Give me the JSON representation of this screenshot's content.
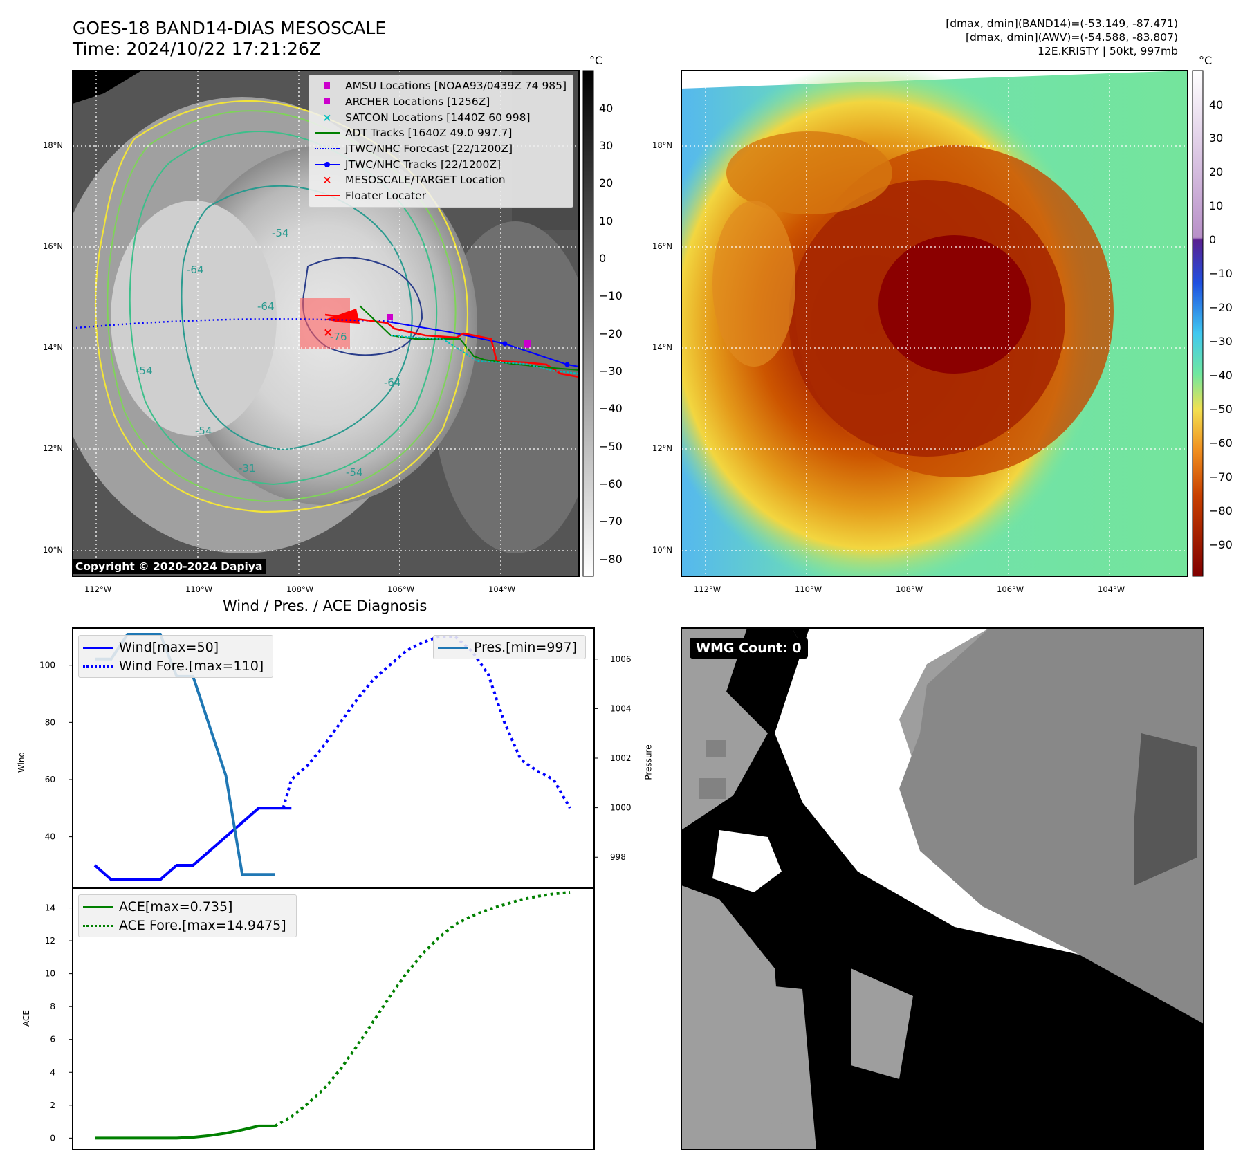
{
  "header": {
    "title_line1": "GOES-18 BAND14-DIAS MESOSCALE",
    "title_line2": "Time: 2024/10/22 17:21:26Z",
    "info_line1": "[dmax, dmin](BAND14)=(-53.149, -87.471)",
    "info_line2": "[dmax, dmin](AWV)=(-54.588, -83.807)",
    "info_line3": "12E.KRISTY | 50kt, 997mb"
  },
  "ir_map": {
    "lat_labels": [
      "18°N",
      "16°N",
      "14°N",
      "12°N",
      "10°N"
    ],
    "lon_labels": [
      "112°W",
      "110°W",
      "108°W",
      "106°W",
      "104°W"
    ],
    "contour_labels": [
      "-54",
      "-64",
      "-76",
      "-54",
      "-64",
      "-54",
      "-31",
      "-54",
      "-64"
    ],
    "colorbar_unit": "°C",
    "colorbar_ticks": [
      "40",
      "30",
      "20",
      "10",
      "0",
      "−10",
      "−20",
      "−30",
      "−40",
      "−50",
      "−60",
      "−70",
      "−80"
    ],
    "copyright": "Copyright © 2020-2024 Dapiya",
    "legend": [
      {
        "label": "AMSU Locations [NOAA93/0439Z 74 985]",
        "symbol": "square",
        "color": "#cc00cc"
      },
      {
        "label": "ARCHER Locations [1256Z]",
        "symbol": "square",
        "color": "#cc00cc"
      },
      {
        "label": "SATCON Locations [1440Z 60 998]",
        "symbol": "x",
        "color": "#00bfbf"
      },
      {
        "label": "ADT Tracks [1640Z 49.0 997.7]",
        "symbol": "line",
        "color": "#008000"
      },
      {
        "label": "JTWC/NHC Forecast [22/1200Z]",
        "symbol": "dotted",
        "color": "#0000ff"
      },
      {
        "label": "JTWC/NHC Tracks [22/1200Z]",
        "symbol": "line-dot",
        "color": "#0000ff"
      },
      {
        "label": "MESOSCALE/TARGET Location",
        "symbol": "x",
        "color": "#ff0000"
      },
      {
        "label": "Floater Locater",
        "symbol": "line",
        "color": "#ff0000"
      }
    ]
  },
  "awv_map": {
    "lat_labels": [
      "18°N",
      "16°N",
      "14°N",
      "12°N",
      "10°N"
    ],
    "lon_labels": [
      "112°W",
      "110°W",
      "108°W",
      "106°W",
      "104°W"
    ],
    "colorbar_unit": "°C",
    "colorbar_ticks": [
      "40",
      "30",
      "20",
      "10",
      "0",
      "−10",
      "−20",
      "−30",
      "−40",
      "−50",
      "−60",
      "−70",
      "−80",
      "−90"
    ]
  },
  "chart_data": [
    {
      "type": "line",
      "title": "Wind / Pres. / ACE Diagnosis",
      "ylabel": "Wind",
      "y2label": "Pressure",
      "ylim": [
        22,
        113
      ],
      "y2lim": [
        996.75,
        1007.25
      ],
      "yticks": [
        40,
        60,
        80,
        100
      ],
      "y2ticks": [
        998,
        1000,
        1002,
        1004,
        1006
      ],
      "series": [
        {
          "name": "Wind[max=50]",
          "axis": "left",
          "style": "solid",
          "color": "#0000ff",
          "x": [
            0,
            1,
            2,
            3,
            4,
            5,
            6,
            7,
            8,
            9,
            10,
            11,
            12
          ],
          "y": [
            30,
            25,
            25,
            25,
            25,
            30,
            30,
            35,
            40,
            45,
            50,
            50,
            50
          ]
        },
        {
          "name": "Wind Fore.[max=110]",
          "axis": "left",
          "style": "dotted",
          "color": "#0000ff",
          "x": [
            11.5,
            12,
            13,
            14,
            15,
            16,
            17,
            18,
            19,
            20,
            21,
            22,
            23,
            24,
            25,
            26,
            27,
            28,
            29
          ],
          "y": [
            50,
            60,
            65,
            72,
            80,
            88,
            95,
            100,
            105,
            108,
            110,
            110,
            105,
            97,
            80,
            67,
            63,
            60,
            50
          ]
        },
        {
          "name": "Pres.[min=997]",
          "axis": "right",
          "style": "solid",
          "color": "#1f77b4",
          "x": [
            0,
            1,
            2,
            3,
            4,
            5,
            6,
            7,
            8,
            9,
            10,
            11
          ],
          "y": [
            1006,
            1006,
            1007,
            1007,
            1007,
            1005.3,
            1005.3,
            1003.3,
            1001.3,
            997.3,
            997.3,
            997.3
          ]
        }
      ]
    },
    {
      "type": "line",
      "ylabel": "ACE",
      "ylim": [
        -0.7,
        15.2
      ],
      "yticks": [
        0,
        2,
        4,
        6,
        8,
        10,
        12,
        14
      ],
      "series": [
        {
          "name": "ACE[max=0.735]",
          "style": "solid",
          "color": "#008000",
          "x": [
            0,
            1,
            2,
            3,
            4,
            5,
            6,
            7,
            8,
            9,
            10,
            11
          ],
          "y": [
            0,
            0,
            0,
            0,
            0,
            0,
            0.05,
            0.15,
            0.3,
            0.5,
            0.735,
            0.735
          ]
        },
        {
          "name": "ACE Fore.[max=14.9475]",
          "style": "dotted",
          "color": "#008000",
          "x": [
            11,
            12,
            13,
            14,
            15,
            16,
            17,
            18,
            19,
            20,
            21,
            22,
            23,
            24,
            25,
            26,
            27,
            28,
            29
          ],
          "y": [
            0.735,
            1.3,
            2.1,
            3.0,
            4.2,
            5.6,
            7.1,
            8.6,
            10.0,
            11.2,
            12.2,
            13.0,
            13.5,
            13.9,
            14.2,
            14.5,
            14.7,
            14.85,
            14.9475
          ]
        }
      ]
    }
  ],
  "wmg_panel": {
    "label": "WMG Count: 0"
  }
}
